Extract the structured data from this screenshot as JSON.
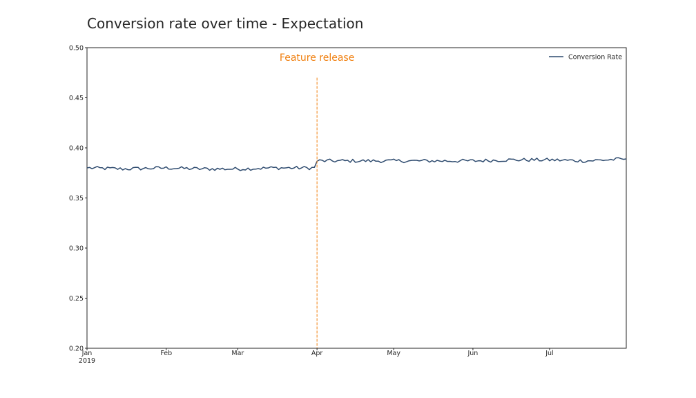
{
  "chart_data": {
    "type": "line",
    "title": "Conversion rate over time - Expectation",
    "xlabel": "",
    "ylabel": "",
    "x_start": "2019-01-01",
    "x_end": "2019-07-31",
    "ylim": [
      0.2,
      0.5
    ],
    "yticks": [
      "0.20",
      "0.25",
      "0.30",
      "0.35",
      "0.40",
      "0.45",
      "0.50"
    ],
    "xticks": [
      {
        "date": "2019-01-01",
        "label": "Jan",
        "sublabel": "2019"
      },
      {
        "date": "2019-02-01",
        "label": "Feb",
        "sublabel": ""
      },
      {
        "date": "2019-03-01",
        "label": "Mar",
        "sublabel": ""
      },
      {
        "date": "2019-04-01",
        "label": "Apr",
        "sublabel": ""
      },
      {
        "date": "2019-05-01",
        "label": "May",
        "sublabel": ""
      },
      {
        "date": "2019-06-01",
        "label": "Jun",
        "sublabel": ""
      },
      {
        "date": "2019-07-01",
        "label": "Jul",
        "sublabel": ""
      }
    ],
    "grid": false,
    "legend_position": "top-right",
    "series": [
      {
        "name": "Conversion Rate",
        "color": "#2d4a6e",
        "points": [
          {
            "date": "2019-01-01",
            "value": 0.38
          },
          {
            "date": "2019-01-15",
            "value": 0.379
          },
          {
            "date": "2019-02-01",
            "value": 0.38
          },
          {
            "date": "2019-02-15",
            "value": 0.379
          },
          {
            "date": "2019-03-01",
            "value": 0.379
          },
          {
            "date": "2019-03-15",
            "value": 0.38
          },
          {
            "date": "2019-03-31",
            "value": 0.38
          },
          {
            "date": "2019-04-01",
            "value": 0.387
          },
          {
            "date": "2019-04-15",
            "value": 0.387
          },
          {
            "date": "2019-05-01",
            "value": 0.387
          },
          {
            "date": "2019-05-15",
            "value": 0.387
          },
          {
            "date": "2019-06-01",
            "value": 0.387
          },
          {
            "date": "2019-06-15",
            "value": 0.388
          },
          {
            "date": "2019-07-01",
            "value": 0.388
          },
          {
            "date": "2019-07-15",
            "value": 0.387
          },
          {
            "date": "2019-07-31",
            "value": 0.389
          }
        ]
      }
    ],
    "annotations": [
      {
        "type": "vline",
        "date": "2019-04-01",
        "y_top": 0.47,
        "text": "Feature release",
        "color": "#f07f0e",
        "linestyle": "dashed"
      }
    ]
  }
}
